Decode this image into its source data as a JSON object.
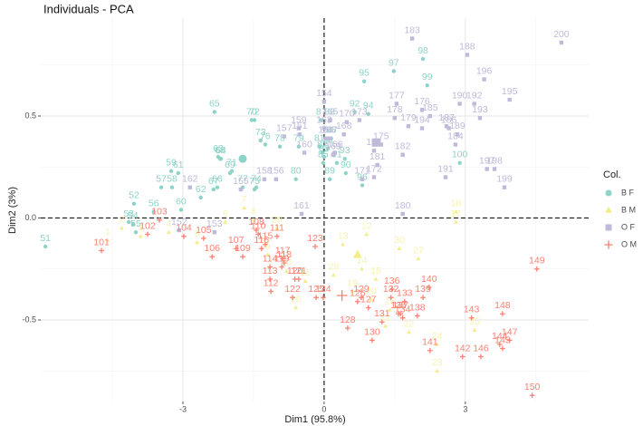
{
  "chart_data": {
    "type": "scatter",
    "title": "Individuals - PCA",
    "x_label": "Dim1 (95.8%)",
    "y_label": "Dim2 (3%)",
    "legend_title": "Col.",
    "legend": "right",
    "grid": true,
    "xlim": [
      -6.02,
      5.62
    ],
    "ylim": [
      -0.9,
      0.98
    ],
    "xticks": [
      -3,
      0,
      3
    ],
    "yticks": [
      -0.5,
      {
        "value": 0,
        "label": "0.0"
      },
      0.5
    ],
    "series": [
      {
        "name": "B F",
        "color": "#8dd3c7",
        "shape": "circle",
        "labels": [
          "51",
          "52",
          "53",
          "54",
          "55",
          "56",
          "57",
          "58",
          "59",
          "60",
          "61",
          "62",
          "63",
          "64",
          "65",
          "66",
          "67",
          "68",
          "69",
          "70",
          "71",
          "72",
          "73",
          "74",
          "75",
          "76",
          "77",
          "78",
          "79",
          "80",
          "81",
          "82",
          "83",
          "84",
          "85",
          "86",
          "87",
          "88",
          "89",
          "90",
          "91",
          "92",
          "93",
          "94",
          "95",
          "96",
          "97",
          "98",
          "99",
          "100"
        ],
        "x": [
          -5.92,
          -4.04,
          -4.15,
          -4.06,
          -4.0,
          -3.62,
          -3.46,
          -3.23,
          -3.25,
          -3.04,
          -3.1,
          -2.62,
          -2.25,
          -2.19,
          -2.33,
          -2.27,
          -2.35,
          -2.21,
          -2.0,
          -1.54,
          -1.96,
          -1.48,
          -1.35,
          -1.44,
          -1.48,
          -1.25,
          -1.73,
          -0.94,
          -0.54,
          -0.6,
          -0.1,
          -0.04,
          0,
          0.08,
          -0.02,
          0.15,
          -0.06,
          0.12,
          0.12,
          0.46,
          0.27,
          0.65,
          0.44,
          0.94,
          0.85,
          0.81,
          1.48,
          2.1,
          2.19,
          2.88
        ],
        "values": [
          -0.14,
          0.07,
          -0.02,
          -0.03,
          -0.07,
          0.03,
          0.15,
          0.15,
          0.23,
          0.04,
          0.22,
          0.1,
          0.3,
          0.29,
          0.52,
          0.15,
          0.14,
          0.29,
          0.22,
          0.48,
          0.23,
          0.48,
          0.38,
          0.15,
          0.14,
          0.36,
          0.15,
          0.35,
          0.35,
          0.19,
          0.35,
          0.32,
          0.3,
          0.34,
          0.27,
          0.39,
          0.48,
          0.48,
          0.19,
          0.22,
          0.27,
          0.52,
          0.29,
          0.51,
          0.67,
          0.16,
          0.72,
          0.78,
          0.65,
          0.27
        ],
        "centroid": {
          "x": -1.73,
          "y": 0.29
        }
      },
      {
        "name": "B M",
        "color": "#f2ee8c",
        "shape": "triangle",
        "labels": [
          "1",
          "2",
          "3",
          "4",
          "5",
          "6",
          "7",
          "8",
          "9",
          "10",
          "11",
          "12",
          "13",
          "14",
          "15",
          "16",
          "17",
          "18",
          "19",
          "20",
          "21",
          "22",
          "23",
          "24",
          "25",
          "26",
          "27",
          "28",
          "29",
          "30"
        ],
        "x": [
          -4.6,
          -4.3,
          -3.9,
          -3.3,
          -2.7,
          -2.1,
          -1.7,
          -1.5,
          -1.2,
          -0.8,
          -0.4,
          0.9,
          0.4,
          0.8,
          1.1,
          1.4,
          2.8,
          2.8,
          0.6,
          1.0,
          1.3,
          1.8,
          2.4,
          2.4,
          3.2,
          -0.6,
          2.0,
          0.2,
          -1.0,
          1.6
        ],
        "values": [
          -0.11,
          -0.05,
          -0.09,
          -0.07,
          -0.12,
          -0.02,
          0.05,
          -0.01,
          -0.18,
          -0.26,
          -0.31,
          -0.08,
          -0.13,
          -0.25,
          -0.3,
          -0.45,
          -0.02,
          0.03,
          -0.36,
          -0.4,
          -0.53,
          -0.56,
          -0.75,
          -0.62,
          -0.55,
          -0.44,
          -0.2,
          -0.28,
          -0.05,
          -0.15
        ],
        "centroid": {
          "x": 0.71,
          "y": -0.18
        }
      },
      {
        "name": "O F",
        "color": "#bebada",
        "shape": "square",
        "labels": [
          "151",
          "152",
          "153",
          "154",
          "155",
          "156",
          "157",
          "158",
          "159",
          "160",
          "161",
          "162",
          "163",
          "164",
          "165",
          "166",
          "167",
          "168",
          "169",
          "170",
          "171",
          "172",
          "173",
          "174",
          "175",
          "176",
          "177",
          "178",
          "179",
          "180",
          "181",
          "182",
          "183",
          "184",
          "185",
          "186",
          "187",
          "188",
          "189",
          "190",
          "191",
          "192",
          "193",
          "194",
          "195",
          "196",
          "197",
          "198",
          "199",
          "200"
        ],
        "x": [
          -0.52,
          -3.08,
          -2.33,
          0,
          -1.77,
          -1.02,
          -0.85,
          -1.27,
          -0.54,
          -0.42,
          -0.48,
          -2.85,
          0,
          0.04,
          0.13,
          0.23,
          0.12,
          0.42,
          0.19,
          0.48,
          0.81,
          1.06,
          0.75,
          1.06,
          1.21,
          2.08,
          1.54,
          1.5,
          1.79,
          1.67,
          1.13,
          1.67,
          1.87,
          2.79,
          2.25,
          2.65,
          2.6,
          3.04,
          2.83,
          2.88,
          2.58,
          3.19,
          3.31,
          2.08,
          3.94,
          3.4,
          3.46,
          3.62,
          3.83,
          5.04
        ],
        "values": [
          0.41,
          -0.06,
          -0.07,
          0.57,
          0.14,
          0.19,
          0.4,
          0.19,
          0.44,
          0.32,
          0.02,
          0.15,
          0.44,
          0.39,
          0.48,
          0.32,
          0.39,
          0.41,
          0.31,
          0.47,
          0.19,
          0.2,
          0.48,
          0.33,
          0.36,
          0.53,
          0.56,
          0.49,
          0.45,
          0.02,
          0.26,
          0.31,
          0.88,
          0.36,
          0.5,
          0.44,
          0.45,
          0.8,
          0.41,
          0.56,
          0.2,
          0.56,
          0.49,
          0.44,
          0.58,
          0.68,
          0.24,
          0.24,
          0.15,
          0.86
        ],
        "centroid": {
          "x": 1.1,
          "y": 0.37
        }
      },
      {
        "name": "O M",
        "color": "#fb8072",
        "shape": "plus",
        "labels": [
          "101",
          "102",
          "103",
          "104",
          "105",
          "106",
          "107",
          "108",
          "109",
          "110",
          "111",
          "112",
          "113",
          "114",
          "115",
          "116",
          "117",
          "118",
          "119",
          "120",
          "121",
          "122",
          "123",
          "124",
          "125",
          "126",
          "127",
          "128",
          "129",
          "130",
          "131",
          "132",
          "133",
          "134",
          "135",
          "136",
          "137",
          "138",
          "139",
          "140",
          "141",
          "142",
          "143",
          "144",
          "145",
          "146",
          "147",
          "148",
          "149",
          "150"
        ],
        "x": [
          -4.73,
          -3.75,
          -3.5,
          -2.98,
          -2.56,
          -2.38,
          -1.87,
          -1.44,
          -1.73,
          -1.4,
          -1.0,
          -1.13,
          -1.15,
          -1.15,
          -1.25,
          -1.33,
          -0.88,
          -0.85,
          -0.9,
          -0.62,
          -0.54,
          -0.67,
          -0.19,
          -0.02,
          -0.17,
          0.71,
          0.94,
          0.5,
          0.79,
          1.02,
          1.23,
          1.42,
          1.71,
          1.67,
          1.58,
          1.44,
          1.62,
          1.98,
          2.1,
          2.23,
          2.25,
          2.94,
          3.13,
          3.73,
          3.79,
          3.33,
          3.94,
          3.79,
          4.52,
          4.42
        ],
        "values": [
          -0.16,
          -0.08,
          -0.01,
          -0.09,
          -0.1,
          -0.19,
          -0.15,
          -0.06,
          -0.19,
          -0.08,
          -0.09,
          -0.36,
          -0.3,
          -0.24,
          -0.13,
          -0.15,
          -0.2,
          -0.22,
          -0.24,
          -0.3,
          -0.3,
          -0.39,
          -0.14,
          -0.39,
          -0.39,
          -0.41,
          -0.44,
          -0.54,
          -0.39,
          -0.6,
          -0.51,
          -0.39,
          -0.41,
          -0.49,
          -0.47,
          -0.35,
          -0.47,
          -0.48,
          -0.39,
          -0.34,
          -0.65,
          -0.68,
          -0.49,
          -0.62,
          -0.64,
          -0.68,
          -0.6,
          -0.47,
          -0.25,
          -0.87
        ],
        "centroid": {
          "x": 0.38,
          "y": -0.38
        }
      }
    ]
  }
}
